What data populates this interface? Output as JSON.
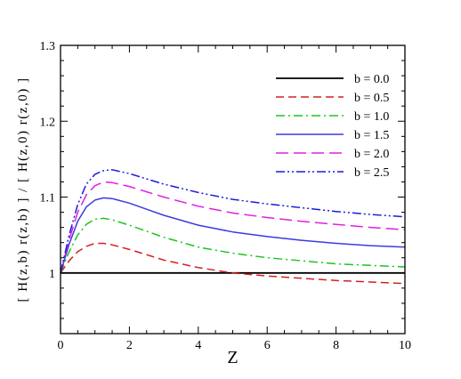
{
  "chart_data": {
    "type": "line",
    "xlabel": "Z",
    "ylabel": "[ H(z,b) r(z,b) ] / [ H(z,0) r(z,0) ]",
    "xlim": [
      0,
      10
    ],
    "ylim": [
      0.92,
      1.3
    ],
    "xticks": [
      0,
      2,
      4,
      6,
      8,
      10
    ],
    "xtick_labels": [
      "0",
      "2",
      "4",
      "6",
      "8",
      "10"
    ],
    "yticks": [
      1.0,
      1.1,
      1.2,
      1.3
    ],
    "ytick_labels": [
      "1",
      "1.1",
      "1.2",
      "1.3"
    ],
    "grid": false,
    "legend_position": "top-right",
    "x": [
      0,
      0.25,
      0.5,
      0.75,
      1,
      1.25,
      1.5,
      2,
      2.5,
      3,
      4,
      5,
      6,
      7,
      8,
      9,
      10
    ],
    "series": [
      {
        "name": "b = 0.0",
        "color": "#000000",
        "dash": "solid",
        "values": [
          1.0,
          1.0,
          1.0,
          1.0,
          1.0,
          1.0,
          1.0,
          1.0,
          1.0,
          1.0,
          1.0,
          1.0,
          1.0,
          1.0,
          1.0,
          1.0,
          1.0
        ]
      },
      {
        "name": "b = 0.5",
        "color": "#d42020",
        "dash": "dashed",
        "values": [
          1.0,
          1.016,
          1.028,
          1.035,
          1.039,
          1.039,
          1.037,
          1.031,
          1.024,
          1.017,
          1.007,
          1.0,
          0.996,
          0.993,
          0.99,
          0.988,
          0.986
        ]
      },
      {
        "name": "b = 1.0",
        "color": "#1ec41e",
        "dash": "dashdot",
        "values": [
          1.0,
          1.028,
          1.05,
          1.064,
          1.071,
          1.072,
          1.07,
          1.063,
          1.055,
          1.047,
          1.034,
          1.026,
          1.02,
          1.016,
          1.012,
          1.01,
          1.008
        ]
      },
      {
        "name": "b = 1.5",
        "color": "#3b3be0",
        "dash": "solid",
        "values": [
          1.0,
          1.038,
          1.068,
          1.087,
          1.096,
          1.099,
          1.098,
          1.092,
          1.084,
          1.076,
          1.063,
          1.054,
          1.048,
          1.043,
          1.039,
          1.036,
          1.034
        ]
      },
      {
        "name": "b = 2.0",
        "color": "#e020e0",
        "dash": "longdash",
        "values": [
          1.0,
          1.044,
          1.08,
          1.103,
          1.115,
          1.12,
          1.119,
          1.114,
          1.107,
          1.1,
          1.088,
          1.079,
          1.073,
          1.068,
          1.064,
          1.06,
          1.057
        ]
      },
      {
        "name": "b = 2.5",
        "color": "#1c1cd8",
        "dash": "dashdotdot",
        "values": [
          1.0,
          1.05,
          1.09,
          1.117,
          1.13,
          1.135,
          1.136,
          1.131,
          1.124,
          1.117,
          1.106,
          1.097,
          1.091,
          1.086,
          1.081,
          1.077,
          1.074
        ]
      }
    ]
  }
}
